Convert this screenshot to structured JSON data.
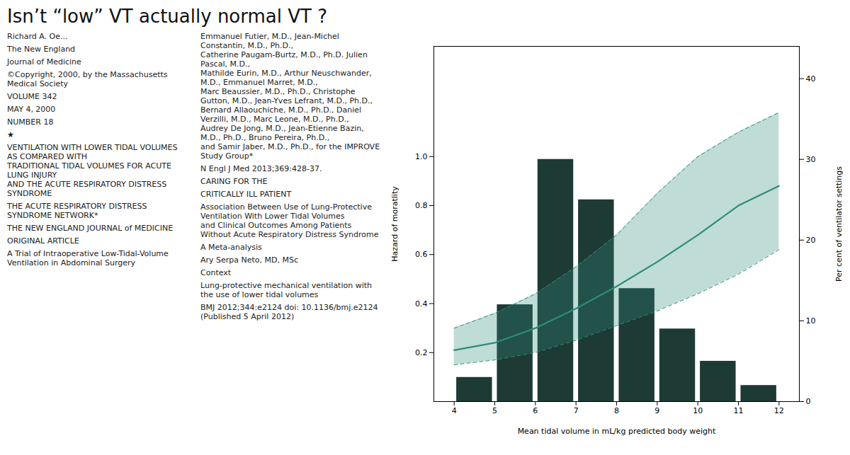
{
  "chart_data": {
    "type": "bar",
    "title": "Isn’t “low” VT actually normal VT ?",
    "annotations": [
      "Richard A. Oe...",
      "The New England",
      "Journal of Medicine",
      "©Copyright, 2000, by the Massachusetts Medical Society",
      "VOLUME 342",
      "MAY 4, 2000",
      "NUMBER 18",
      "★",
      "VENTILATION WITH LOWER TIDAL VOLUMES AS COMPARED WITH\nTRADITIONAL TIDAL VOLUMES FOR ACUTE LUNG INJURY\nAND THE ACUTE RESPIRATORY DISTRESS SYNDROME",
      "THE ACUTE RESPIRATORY DISTRESS SYNDROME NETWORK*",
      "THE NEW ENGLAND JOURNAL of MEDICINE",
      "ORIGINAL ARTICLE",
      "A Trial of Intraoperative Low-Tidal-Volume\nVentilation in Abdominal Surgery",
      "Emmanuel Futier, M.D., Jean-Michel Constantin, M.D., Ph.D.,\nCatherine Paugam-Burtz, M.D., Ph.D. Julien Pascal, M.D.,\nMathilde Eurin, M.D., Arthur Neuschwander, M.D., Emmanuel Marret, M.D.,\nMarc Beaussier, M.D., Ph.D., Christophe Gutton, M.D., Jean-Yves Lefrant, M.D., Ph.D.,\nBernard Allaouchiche, M.D., Ph.D., Daniel Verzilli, M.D., Marc Leone, M.D., Ph.D.,\nAudrey De Jong, M.D., Jean-Etienne Bazin, M.D., Ph.D., Bruno Pereira, Ph.D.,\nand Samir Jaber, M.D., Ph.D., for the IMPROVE Study Group*",
      "N Engl J Med 2013;369:428-37.",
      "CARING FOR THE",
      "CRITICALLY ILL PATIENT",
      "Association Between Use of Lung-Protective\nVentilation With Lower Tidal Volumes\nand Clinical Outcomes Among Patients\nWithout Acute Respiratory Distress Syndrome",
      "A Meta-analysis",
      "Ary Serpa Neto, MD, MSc",
      "Context",
      "Lung-protective mechanical ventilation with the use of lower tidal volumes",
      "BMJ 2012;344:e2124 doi: 10.1136/bmj.e2124 (Published 5 April 2012)"
    ],
    "xlabel": "Mean tidal volume in mL/kg predicted body weight",
    "ylabel": "Hazard of moratlity",
    "y2label": "Per cent of ventilator settings",
    "xlim": [
      3.5,
      12.5
    ],
    "xticks": [
      4,
      5,
      6,
      7,
      8,
      9,
      10,
      11,
      12
    ],
    "ylim": [
      0.0,
      1.45
    ],
    "yticks": [
      0.2,
      0.4,
      0.6,
      0.8,
      {
        "value": 1.0,
        "label": "1.0"
      }
    ],
    "y2lim": [
      0,
      44
    ],
    "y2ticks": [
      0,
      10,
      20,
      30,
      40
    ],
    "grid": false,
    "series": [
      {
        "type": "bar",
        "axis": "y2",
        "color": "#1e3a35",
        "x": [
          4.5,
          5.5,
          6.5,
          7.5,
          8.5,
          9.5,
          10.5,
          11.5
        ],
        "values": [
          3,
          12,
          30,
          25,
          14,
          9,
          5,
          2
        ]
      },
      {
        "type": "line",
        "color": "#2d8b7a",
        "x": [
          4,
          5,
          6,
          7,
          8,
          9,
          10,
          11,
          12
        ],
        "values": [
          0.21,
          0.24,
          0.3,
          0.38,
          0.47,
          0.57,
          0.68,
          0.8,
          0.88
        ],
        "ci_upper": [
          0.3,
          0.36,
          0.44,
          0.55,
          0.68,
          0.85,
          1.0,
          1.1,
          1.18
        ],
        "ci_lower": [
          0.15,
          0.17,
          0.2,
          0.25,
          0.31,
          0.37,
          0.44,
          0.52,
          0.62
        ]
      }
    ]
  }
}
